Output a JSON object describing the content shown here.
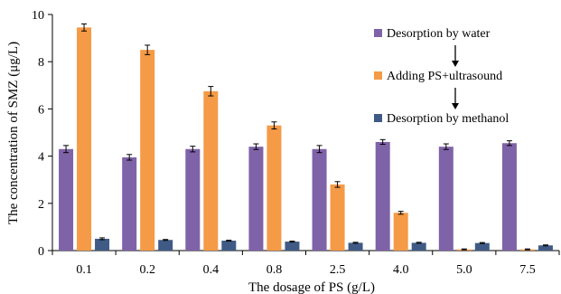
{
  "chart_data": {
    "type": "bar",
    "title": "",
    "xlabel": "The dosage of PS (g/L)",
    "ylabel": "The concentration of SMZ (μg/L)",
    "ylim": [
      0,
      10
    ],
    "yticks": [
      "0",
      "2",
      "4",
      "6",
      "8",
      "10"
    ],
    "categories": [
      "0.1",
      "0.2",
      "0.4",
      "0.8",
      "2.5",
      "4.0",
      "5.0",
      "7.5"
    ],
    "series": [
      {
        "name": "Desorption by water",
        "color": "#7f63a8",
        "values": [
          4.3,
          3.95,
          4.3,
          4.4,
          4.3,
          4.6,
          4.4,
          4.55
        ],
        "errors": [
          0.15,
          0.12,
          0.12,
          0.12,
          0.15,
          0.1,
          0.12,
          0.1
        ]
      },
      {
        "name": "Adding PS+ultrasound",
        "color": "#f59a46",
        "values": [
          9.45,
          8.5,
          6.75,
          5.3,
          2.8,
          1.6,
          0.05,
          0.05
        ],
        "errors": [
          0.15,
          0.2,
          0.2,
          0.15,
          0.12,
          0.06,
          0.02,
          0.02
        ]
      },
      {
        "name": "Desorption by methanol",
        "color": "#3f5b85",
        "values": [
          0.5,
          0.45,
          0.42,
          0.38,
          0.33,
          0.33,
          0.32,
          0.22
        ],
        "errors": [
          0.04,
          0.02,
          0.02,
          0.02,
          0.02,
          0.02,
          0.02,
          0.02
        ]
      }
    ],
    "legend_position": "right",
    "grid": false
  }
}
